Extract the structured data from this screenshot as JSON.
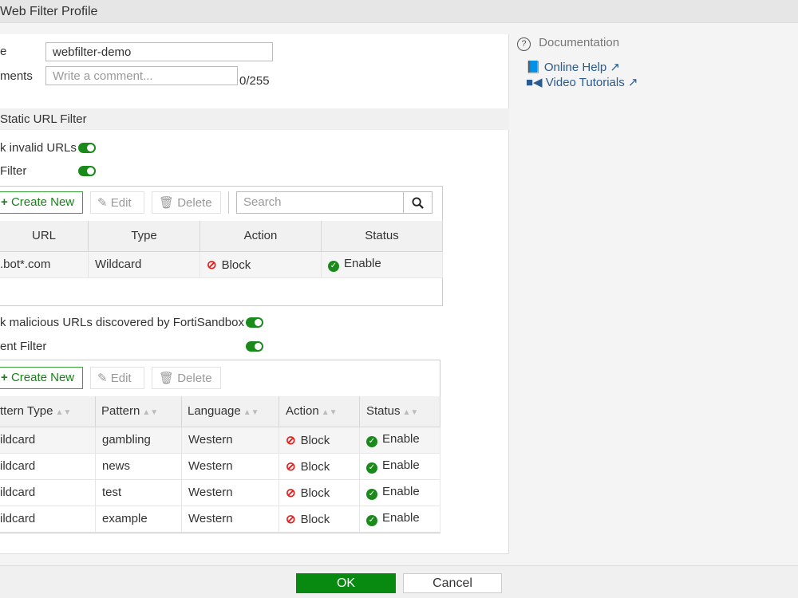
{
  "title": "Web Filter Profile",
  "form": {
    "name_label": "e",
    "name_value": "webfilter-demo",
    "comments_label": "ments",
    "comments_placeholder": "Write a comment...",
    "comments_count": "0/255"
  },
  "section": {
    "title": "Static URL Filter"
  },
  "toggles": {
    "invalid_urls": "k invalid URLs",
    "url_filter": "Filter",
    "sandbox": "k malicious URLs discovered by FortiSandbox",
    "content_filter": "ent Filter"
  },
  "toolbar": {
    "create": "Create New",
    "edit": "Edit",
    "delete": "Delete",
    "search_placeholder": "Search"
  },
  "url_table": {
    "headers": [
      "URL",
      "Type",
      "Action",
      "Status"
    ],
    "rows": [
      {
        "url": ".bot*.com",
        "type": "Wildcard",
        "action": "Block",
        "status": "Enable"
      }
    ]
  },
  "content_table": {
    "headers": [
      "ttern Type",
      "Pattern",
      "Language",
      "Action",
      "Status"
    ],
    "rows": [
      {
        "type": "ildcard",
        "pattern": "gambling",
        "language": "Western",
        "action": "Block",
        "status": "Enable"
      },
      {
        "type": "ildcard",
        "pattern": "news",
        "language": "Western",
        "action": "Block",
        "status": "Enable"
      },
      {
        "type": "ildcard",
        "pattern": "test",
        "language": "Western",
        "action": "Block",
        "status": "Enable"
      },
      {
        "type": "ildcard",
        "pattern": "example",
        "language": "Western",
        "action": "Block",
        "status": "Enable"
      }
    ]
  },
  "sidebar": {
    "title": "Documentation",
    "links": [
      "Online Help",
      "Video Tutorials"
    ]
  },
  "footer": {
    "ok": "OK",
    "cancel": "Cancel"
  },
  "colors": {
    "accent": "#078a0f",
    "toggle_on": "#1a8a1a",
    "block": "#d22222",
    "link": "#2a5a8f"
  }
}
